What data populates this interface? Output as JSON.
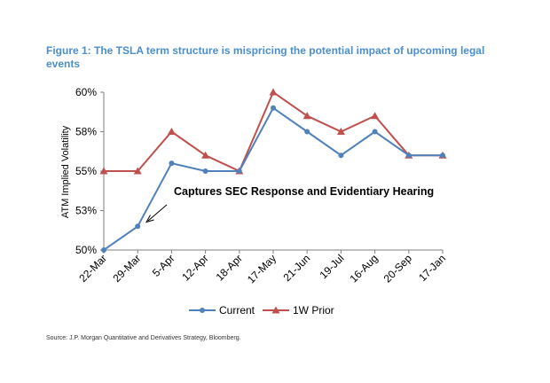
{
  "figure": {
    "title": "Figure 1: The TSLA term structure is mispricing the potential impact of upcoming legal events",
    "source": "Source: J.P. Morgan Quantitative and Derivatives Strategy, Bloomberg."
  },
  "chart_data": {
    "type": "line",
    "categories": [
      "22-Mar",
      "29-Mar",
      "5-Apr",
      "12-Apr",
      "18-Apr",
      "17-May",
      "21-Jun",
      "19-Jul",
      "16-Aug",
      "20-Sep",
      "17-Jan"
    ],
    "series": [
      {
        "name": "Current",
        "color": "#4f81bd",
        "marker": "circle",
        "values": [
          50.0,
          51.5,
          55.5,
          55.0,
          55.0,
          59.0,
          57.5,
          56.0,
          57.5,
          56.0,
          56.0
        ]
      },
      {
        "name": "1W Prior",
        "color": "#c0504d",
        "marker": "triangle",
        "values": [
          55.0,
          55.0,
          57.5,
          56.0,
          55.0,
          60.0,
          58.5,
          57.5,
          58.5,
          56.0,
          56.0
        ]
      }
    ],
    "ylabel": "ATM Implied Volatility",
    "xlabel": "",
    "ylim": [
      50,
      60
    ],
    "yticks": [
      {
        "value": 50,
        "label": "50%"
      },
      {
        "value": 52.5,
        "label": "53%"
      },
      {
        "value": 55,
        "label": "55%"
      },
      {
        "value": 57.5,
        "label": "58%"
      },
      {
        "value": 60,
        "label": "60%"
      }
    ],
    "grid": false,
    "legend": "bottom",
    "annotation": {
      "text": "Captures SEC Response and Evidentiary Hearing",
      "points_to_category": "29-Mar"
    }
  }
}
